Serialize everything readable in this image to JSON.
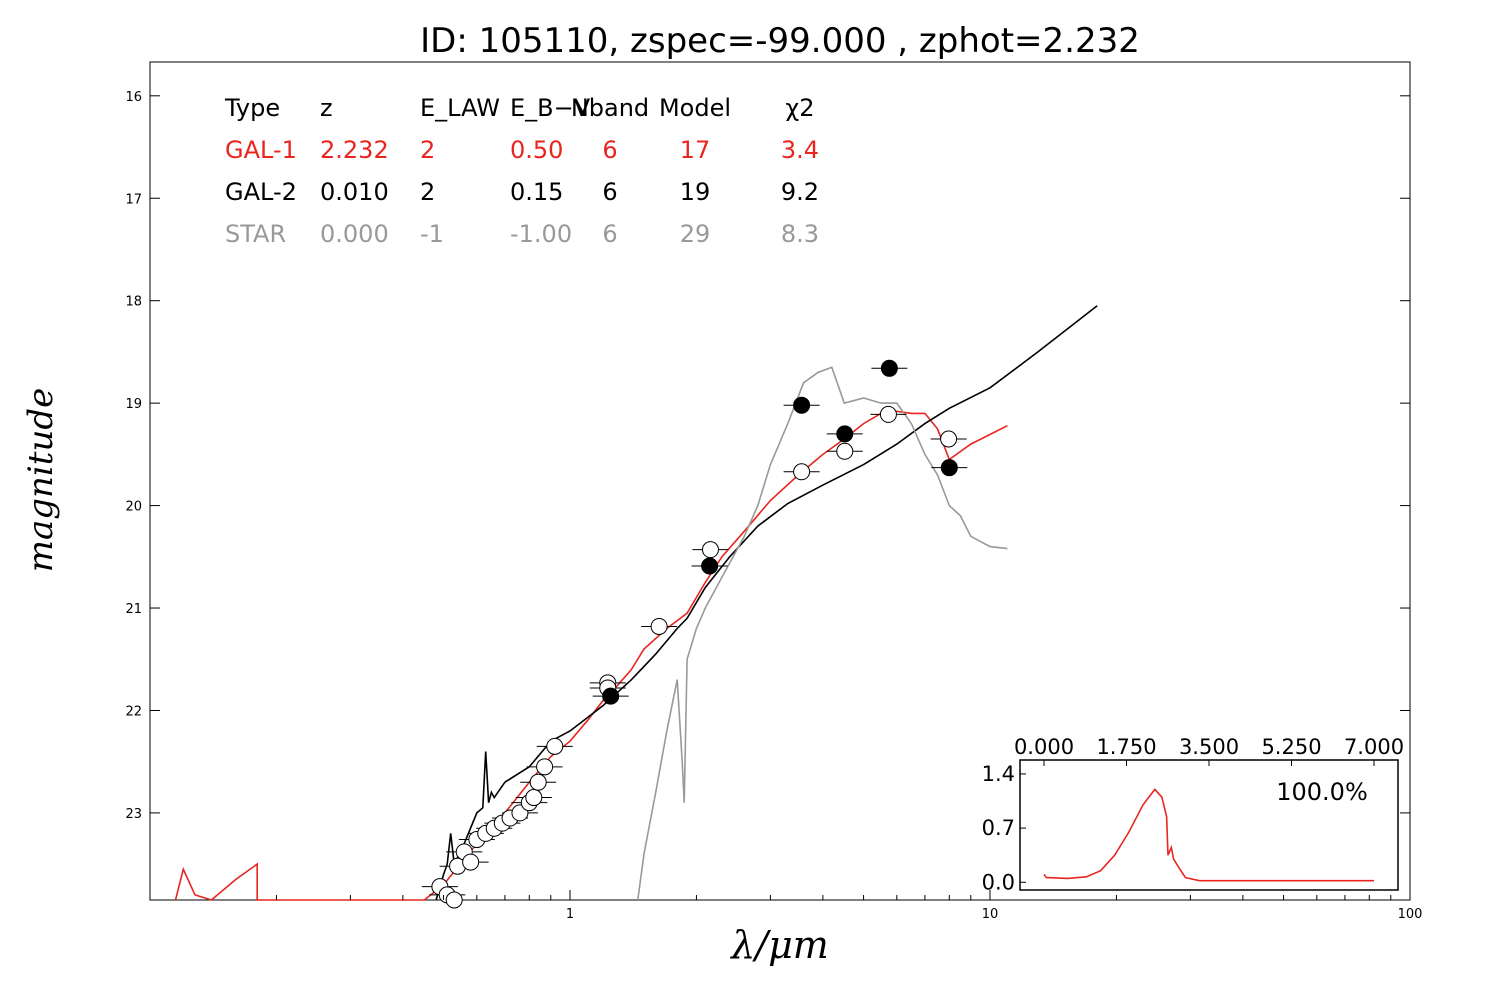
{
  "chart_data": {
    "type": "scatter",
    "title": "ID:  105110, zspec=-99.000 , zphot=2.232",
    "xlabel": "λ/μm",
    "ylabel": "magnitude",
    "xscale": "log",
    "xlim": [
      0.1,
      100
    ],
    "ylim": [
      23.85,
      15.67
    ],
    "x_ticks": [
      1,
      10,
      100
    ],
    "x_tick_labels": [
      "1",
      "10",
      "100"
    ],
    "y_ticks": [
      16,
      17,
      18,
      19,
      20,
      21,
      22,
      23
    ],
    "y_tick_labels": [
      "16",
      "17",
      "18",
      "19",
      "20",
      "21",
      "22",
      "23"
    ],
    "grid": false,
    "colors": {
      "gal1": "#e8251f",
      "gal2": "#000000",
      "star": "#999999",
      "axes": "#000000"
    },
    "fit_table": {
      "headers": [
        "Type",
        "z",
        "E_LAW",
        "E_B−V",
        "Nband",
        "Model",
        "χ2"
      ],
      "rows": [
        {
          "type": "GAL-1",
          "z": "2.232",
          "elaw": "2",
          "ebv": "0.50",
          "nband": "6",
          "model": "17",
          "chi2": "3.4",
          "color": "#e8251f"
        },
        {
          "type": "GAL-2",
          "z": "0.010",
          "elaw": "2",
          "ebv": "0.15",
          "nband": "6",
          "model": "19",
          "chi2": "9.2",
          "color": "#000000"
        },
        {
          "type": "STAR",
          "z": "0.000",
          "elaw": "-1",
          "ebv": "-1.00",
          "nband": "6",
          "model": "29",
          "chi2": "8.3",
          "color": "#999999"
        }
      ]
    },
    "series": [
      {
        "role": "model",
        "color": "#e8251f",
        "points": [
          [
            0.115,
            23.85
          ],
          [
            0.12,
            23.55
          ],
          [
            0.128,
            23.8
          ],
          [
            0.14,
            23.85
          ],
          [
            0.16,
            23.65
          ],
          [
            0.18,
            23.5
          ],
          [
            0.18,
            23.85
          ],
          [
            0.45,
            23.9
          ],
          [
            0.5,
            23.7
          ],
          [
            0.6,
            23.3
          ],
          [
            0.7,
            23.0
          ],
          [
            0.8,
            22.7
          ],
          [
            0.9,
            22.45
          ],
          [
            1.0,
            22.3
          ],
          [
            1.1,
            22.1
          ],
          [
            1.2,
            21.9
          ],
          [
            1.3,
            21.75
          ],
          [
            1.4,
            21.6
          ],
          [
            1.5,
            21.4
          ],
          [
            1.7,
            21.2
          ],
          [
            1.9,
            21.05
          ],
          [
            2.1,
            20.75
          ],
          [
            2.3,
            20.5
          ],
          [
            2.6,
            20.25
          ],
          [
            3.0,
            19.95
          ],
          [
            3.5,
            19.7
          ],
          [
            4.0,
            19.5
          ],
          [
            4.5,
            19.35
          ],
          [
            5.0,
            19.2
          ],
          [
            5.5,
            19.1
          ],
          [
            6.0,
            19.08
          ],
          [
            6.5,
            19.1
          ],
          [
            7.0,
            19.1
          ],
          [
            7.5,
            19.25
          ],
          [
            8.0,
            19.55
          ],
          [
            9.0,
            19.4
          ],
          [
            11.0,
            19.22
          ]
        ]
      },
      {
        "role": "model",
        "color": "#000000",
        "points": [
          [
            0.48,
            23.85
          ],
          [
            0.5,
            23.6
          ],
          [
            0.51,
            23.5
          ],
          [
            0.52,
            23.2
          ],
          [
            0.53,
            23.5
          ],
          [
            0.56,
            23.3
          ],
          [
            0.6,
            23.0
          ],
          [
            0.62,
            22.95
          ],
          [
            0.63,
            22.4
          ],
          [
            0.64,
            22.9
          ],
          [
            0.65,
            22.8
          ],
          [
            0.66,
            22.85
          ],
          [
            0.7,
            22.7
          ],
          [
            0.8,
            22.55
          ],
          [
            0.9,
            22.3
          ],
          [
            1.0,
            22.2
          ],
          [
            1.2,
            21.95
          ],
          [
            1.4,
            21.7
          ],
          [
            1.6,
            21.45
          ],
          [
            1.8,
            21.2
          ],
          [
            1.9,
            21.1
          ],
          [
            2.1,
            20.8
          ],
          [
            2.4,
            20.5
          ],
          [
            2.8,
            20.2
          ],
          [
            3.3,
            19.98
          ],
          [
            4.0,
            19.8
          ],
          [
            5.0,
            19.6
          ],
          [
            6.0,
            19.4
          ],
          [
            7.0,
            19.2
          ],
          [
            8.0,
            19.05
          ],
          [
            10.0,
            18.85
          ],
          [
            13.0,
            18.5
          ],
          [
            18.0,
            18.05
          ]
        ]
      },
      {
        "role": "model",
        "color": "#999999",
        "points": [
          [
            1.45,
            23.9
          ],
          [
            1.5,
            23.4
          ],
          [
            1.6,
            22.8
          ],
          [
            1.7,
            22.2
          ],
          [
            1.8,
            21.7
          ],
          [
            1.85,
            22.5
          ],
          [
            1.87,
            22.9
          ],
          [
            1.9,
            21.5
          ],
          [
            2.0,
            21.2
          ],
          [
            2.1,
            21.0
          ],
          [
            2.3,
            20.7
          ],
          [
            2.6,
            20.3
          ],
          [
            2.8,
            20.0
          ],
          [
            3.0,
            19.6
          ],
          [
            3.3,
            19.2
          ],
          [
            3.6,
            18.8
          ],
          [
            3.9,
            18.7
          ],
          [
            4.2,
            18.65
          ],
          [
            4.5,
            19.0
          ],
          [
            5.0,
            18.95
          ],
          [
            5.5,
            19.0
          ],
          [
            6.0,
            19.0
          ],
          [
            6.5,
            19.2
          ],
          [
            7.0,
            19.5
          ],
          [
            7.5,
            19.7
          ],
          [
            8.0,
            20.0
          ],
          [
            8.5,
            20.1
          ],
          [
            9.0,
            20.3
          ],
          [
            10.0,
            20.4
          ],
          [
            11.0,
            20.42
          ]
        ]
      }
    ],
    "photometry_open": [
      {
        "x": 0.49,
        "y": 23.72
      },
      {
        "x": 0.51,
        "y": 23.8
      },
      {
        "x": 0.53,
        "y": 23.85
      },
      {
        "x": 0.54,
        "y": 23.52
      },
      {
        "x": 0.56,
        "y": 23.38
      },
      {
        "x": 0.58,
        "y": 23.48
      },
      {
        "x": 0.6,
        "y": 23.26
      },
      {
        "x": 0.63,
        "y": 23.2
      },
      {
        "x": 0.66,
        "y": 23.15
      },
      {
        "x": 0.69,
        "y": 23.1
      },
      {
        "x": 0.72,
        "y": 23.05
      },
      {
        "x": 0.76,
        "y": 23.0
      },
      {
        "x": 0.8,
        "y": 22.9
      },
      {
        "x": 0.82,
        "y": 22.85
      },
      {
        "x": 0.84,
        "y": 22.7
      },
      {
        "x": 0.87,
        "y": 22.55
      },
      {
        "x": 0.92,
        "y": 22.35
      },
      {
        "x": 1.23,
        "y": 21.73
      },
      {
        "x": 1.23,
        "y": 21.78
      },
      {
        "x": 1.63,
        "y": 21.18
      },
      {
        "x": 2.16,
        "y": 20.43
      },
      {
        "x": 3.56,
        "y": 19.67
      },
      {
        "x": 4.51,
        "y": 19.47
      },
      {
        "x": 5.73,
        "y": 19.11
      },
      {
        "x": 7.97,
        "y": 19.35
      }
    ],
    "photometry_filled": [
      {
        "x": 1.25,
        "y": 21.86
      },
      {
        "x": 2.15,
        "y": 20.59
      },
      {
        "x": 3.56,
        "y": 19.02
      },
      {
        "x": 4.51,
        "y": 19.3
      },
      {
        "x": 5.76,
        "y": 18.66
      },
      {
        "x": 8.0,
        "y": 19.63
      }
    ],
    "inset": {
      "type": "line",
      "percent_label": "100.0%",
      "x_ticks": [
        0.0,
        1.75,
        3.5,
        5.25,
        7.0
      ],
      "x_tick_labels": [
        "0.000",
        "1.750",
        "3.500",
        "5.250",
        "7.000"
      ],
      "xlim": [
        0,
        7
      ],
      "y_ticks": [
        0.0,
        0.7,
        1.4
      ],
      "y_tick_labels": [
        "0.0",
        "0.7",
        "1.4"
      ],
      "ylim": [
        -0.1,
        1.58
      ],
      "color": "#e8251f",
      "points": [
        [
          0.0,
          0.1
        ],
        [
          0.05,
          0.06
        ],
        [
          0.5,
          0.05
        ],
        [
          0.9,
          0.07
        ],
        [
          1.2,
          0.15
        ],
        [
          1.5,
          0.35
        ],
        [
          1.8,
          0.65
        ],
        [
          2.1,
          1.0
        ],
        [
          2.35,
          1.2
        ],
        [
          2.5,
          1.1
        ],
        [
          2.6,
          0.85
        ],
        [
          2.63,
          0.35
        ],
        [
          2.7,
          0.45
        ],
        [
          2.75,
          0.3
        ],
        [
          2.85,
          0.2
        ],
        [
          3.0,
          0.06
        ],
        [
          3.3,
          0.02
        ],
        [
          5.0,
          0.02
        ],
        [
          7.0,
          0.02
        ]
      ]
    }
  }
}
